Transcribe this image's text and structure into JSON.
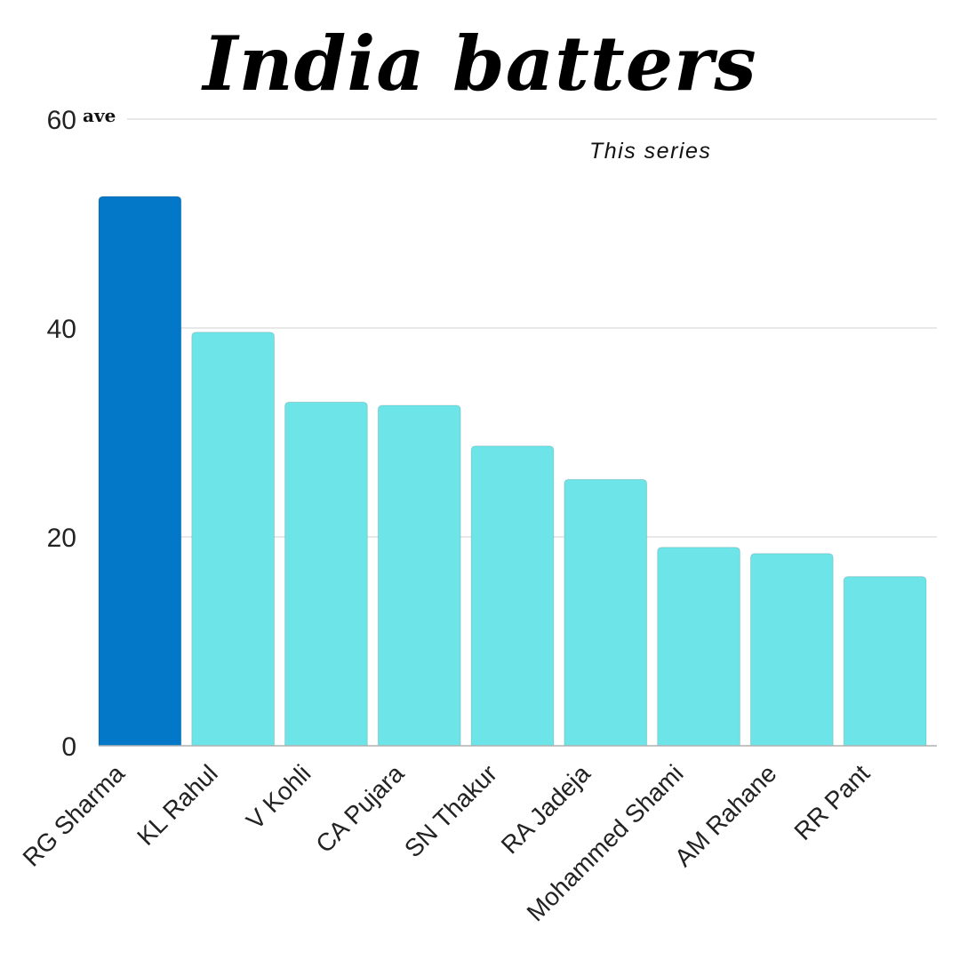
{
  "chart_data": {
    "type": "bar",
    "title": "India batters",
    "subtitle": "This series",
    "ylabel": "ave",
    "xlabel": "",
    "ylim": [
      0,
      60
    ],
    "yticks": [
      0,
      20,
      40,
      60
    ],
    "grid": true,
    "categories": [
      "RG Sharma",
      "KL Rahul",
      "V Kohli",
      "CA Pujara",
      "SN Thakur",
      "RA Jadeja",
      "Mohammed Shami",
      "AM Rahane",
      "RR Pant"
    ],
    "values": [
      52.6,
      39.6,
      32.9,
      32.6,
      28.7,
      25.5,
      19,
      18.4,
      16.2
    ],
    "highlight_index": 0,
    "colors": {
      "highlight": "#0478c8",
      "bar": "#6ce4e8",
      "grid": "#d0d0d0",
      "axis": "#b0b0b0",
      "text": "#222222"
    }
  }
}
